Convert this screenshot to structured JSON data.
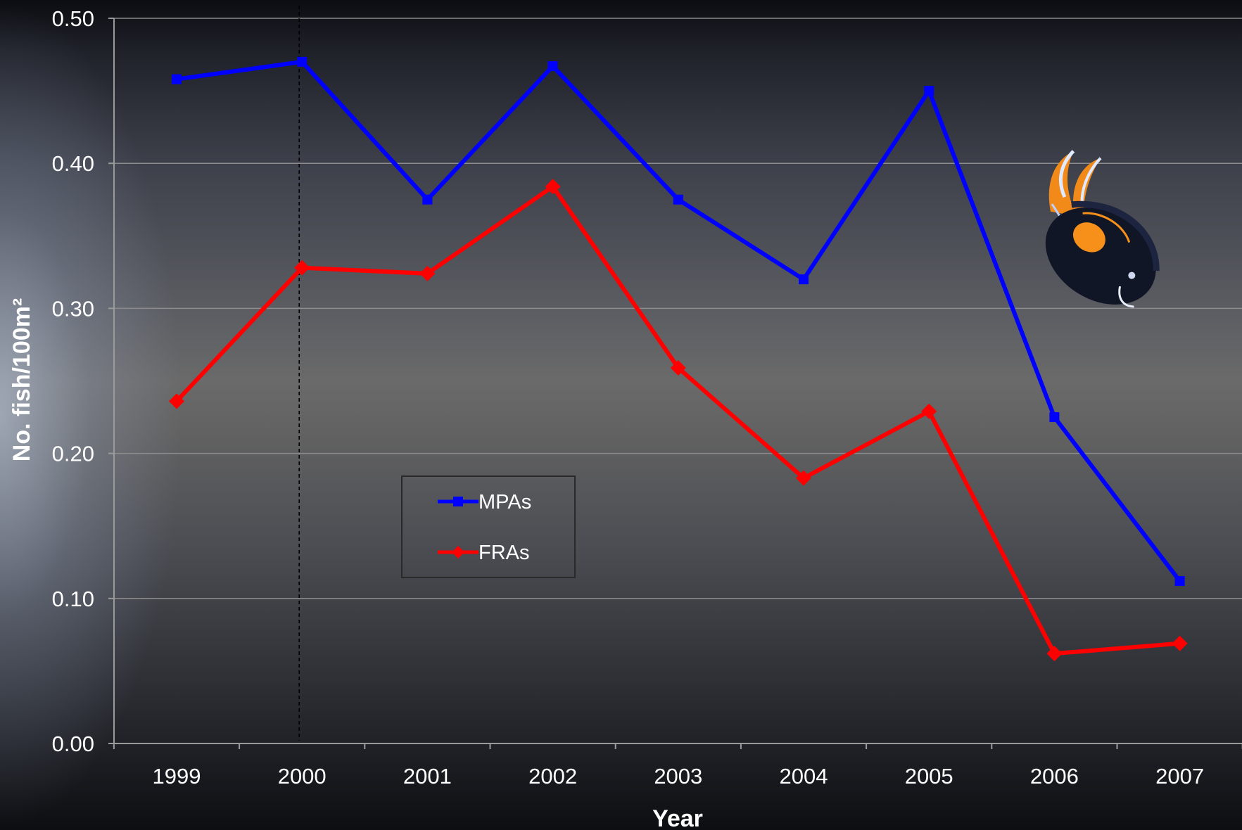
{
  "chart_data": {
    "type": "line",
    "title": "",
    "xlabel": "Year",
    "ylabel": "No. fish/100m²",
    "categories": [
      "1999",
      "2000",
      "2001",
      "2002",
      "2003",
      "2004",
      "2005",
      "2006",
      "2007"
    ],
    "yticks": [
      "0.00",
      "0.10",
      "0.20",
      "0.30",
      "0.40",
      "0.50"
    ],
    "ylim": [
      0,
      0.5
    ],
    "grid": true,
    "legend_position": "center-left",
    "reference_line": {
      "x": "2000",
      "style": "dashed"
    },
    "series": [
      {
        "name": "MPAs",
        "color": "#0000ff",
        "marker": "square",
        "values": [
          0.458,
          0.47,
          0.375,
          0.467,
          0.375,
          0.32,
          0.45,
          0.225,
          0.112
        ]
      },
      {
        "name": "FRAs",
        "color": "#ff0000",
        "marker": "diamond",
        "values": [
          0.236,
          0.328,
          0.324,
          0.384,
          0.259,
          0.183,
          0.229,
          0.062,
          0.069
        ]
      }
    ]
  },
  "illustration": {
    "icon": "surgeonfish-icon"
  }
}
